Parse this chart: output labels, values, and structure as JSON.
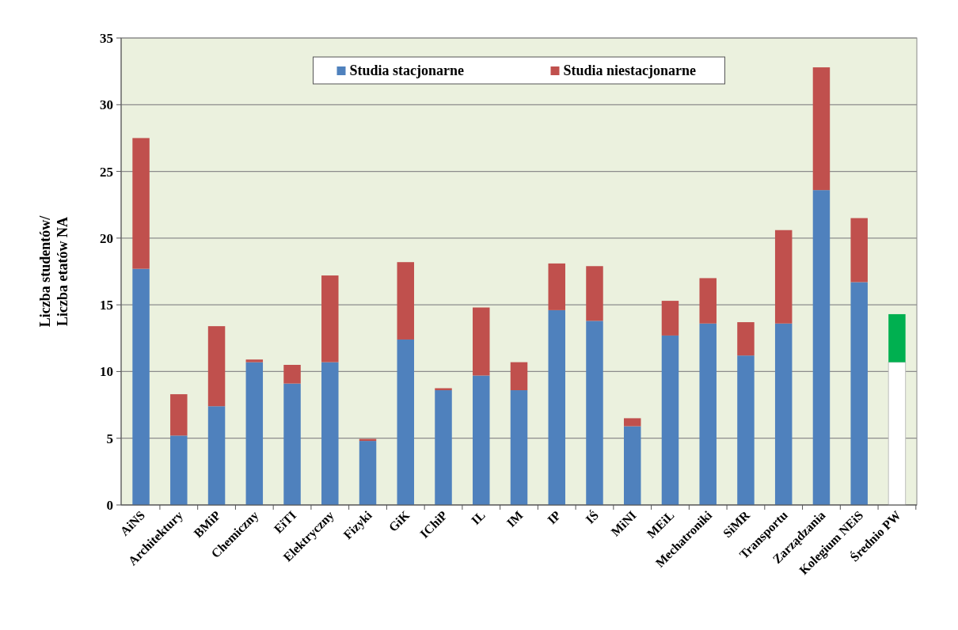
{
  "chart_data": {
    "type": "bar",
    "stacked": true,
    "ylabel": "Liczba studentów/\nLiczba etatów NA",
    "categories": [
      "AiNS",
      "Architektury",
      "BMiP",
      "Chemiczny",
      "EiTI",
      "Elektryczny",
      "Fizyki",
      "GiK",
      "IChiP",
      "IL",
      "IM",
      "IP",
      "IŚ",
      "MiNI",
      "MEiL",
      "Mechatroniki",
      "SiMR",
      "Transportu",
      "Zarządzania",
      "Kolegium NEiS",
      "Średnio PW"
    ],
    "series": [
      {
        "name": "Studia stacjonarne",
        "color": "#4f81bd",
        "colors": [
          "#4f81bd",
          "#4f81bd",
          "#4f81bd",
          "#4f81bd",
          "#4f81bd",
          "#4f81bd",
          "#4f81bd",
          "#4f81bd",
          "#4f81bd",
          "#4f81bd",
          "#4f81bd",
          "#4f81bd",
          "#4f81bd",
          "#4f81bd",
          "#4f81bd",
          "#4f81bd",
          "#4f81bd",
          "#4f81bd",
          "#4f81bd",
          "#4f81bd",
          "#ffffff"
        ],
        "values": [
          17.7,
          5.2,
          7.4,
          10.7,
          9.1,
          10.7,
          4.8,
          12.4,
          8.6,
          9.7,
          8.6,
          14.6,
          13.8,
          5.9,
          12.7,
          13.6,
          11.2,
          13.6,
          23.6,
          16.7,
          10.7
        ]
      },
      {
        "name": "Studia niestacjonarne",
        "color": "#c0504d",
        "colors": [
          "#c0504d",
          "#c0504d",
          "#c0504d",
          "#c0504d",
          "#c0504d",
          "#c0504d",
          "#c0504d",
          "#c0504d",
          "#c0504d",
          "#c0504d",
          "#c0504d",
          "#c0504d",
          "#c0504d",
          "#c0504d",
          "#c0504d",
          "#c0504d",
          "#c0504d",
          "#c0504d",
          "#c0504d",
          "#c0504d",
          "#00b050"
        ],
        "values": [
          9.8,
          3.1,
          6.0,
          0.2,
          1.4,
          6.5,
          0.15,
          5.8,
          0.15,
          5.1,
          2.1,
          3.5,
          4.1,
          0.6,
          2.6,
          3.4,
          2.5,
          7.0,
          9.2,
          4.8,
          3.6
        ]
      }
    ],
    "ylim": [
      0,
      35
    ],
    "yticks": [
      0,
      5,
      10,
      15,
      20,
      25,
      30,
      35
    ],
    "grid": "y",
    "legend": "top"
  }
}
